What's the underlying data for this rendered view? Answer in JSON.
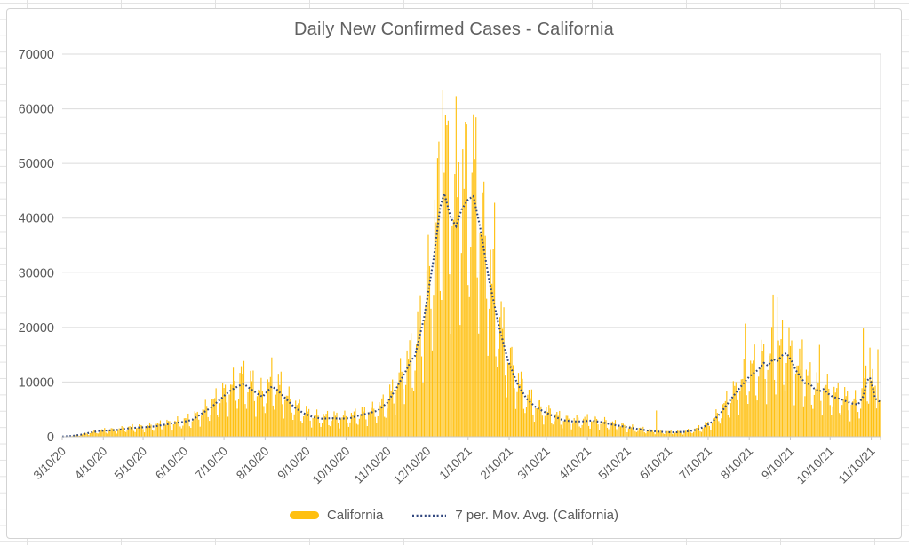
{
  "chart": {
    "title": "Daily New Confirmed Cases - California",
    "legend": [
      {
        "label": "California",
        "type": "bar-swatch",
        "color": "#FFC010"
      },
      {
        "label": "7 per. Mov. Avg. (California)",
        "type": "dotted-line-swatch",
        "color": "#31477E"
      }
    ]
  },
  "chart_data": {
    "type": "bar",
    "title": "Daily New Confirmed Cases - California",
    "ylim": [
      0,
      70000
    ],
    "y_ticks": [
      0,
      10000,
      20000,
      30000,
      40000,
      50000,
      60000,
      70000
    ],
    "grid": "horizontal",
    "legend_position": "bottom",
    "x_unit": "day",
    "x_start_date": "3/10/20",
    "total_days": 618,
    "x_axis_end_day": 617,
    "x_ticks": [
      {
        "label": "3/10/20",
        "day": 0
      },
      {
        "label": "4/10/20",
        "day": 31
      },
      {
        "label": "5/10/20",
        "day": 61
      },
      {
        "label": "6/10/20",
        "day": 92
      },
      {
        "label": "7/10/20",
        "day": 122
      },
      {
        "label": "8/10/20",
        "day": 153
      },
      {
        "label": "9/10/20",
        "day": 184
      },
      {
        "label": "10/10/20",
        "day": 214
      },
      {
        "label": "11/10/20",
        "day": 245
      },
      {
        "label": "12/10/20",
        "day": 275
      },
      {
        "label": "1/10/21",
        "day": 306
      },
      {
        "label": "2/10/21",
        "day": 337
      },
      {
        "label": "3/10/21",
        "day": 365
      },
      {
        "label": "4/10/21",
        "day": 396
      },
      {
        "label": "5/10/21",
        "day": 426
      },
      {
        "label": "6/10/21",
        "day": 457
      },
      {
        "label": "7/10/21",
        "day": 487
      },
      {
        "label": "8/10/21",
        "day": 518
      },
      {
        "label": "9/10/21",
        "day": 549
      },
      {
        "label": "10/10/21",
        "day": 579
      },
      {
        "label": "11/10/21",
        "day": 610
      }
    ],
    "series": [
      {
        "name": "California",
        "type": "bar",
        "color": "#FFC113",
        "model": "daily bars = interpolated moving-average anchors × weekday_factors × (1 + bar_jitter·sin(2.399·day)); spike days override"
      },
      {
        "name": "7 per. Mov. Avg. (California)",
        "type": "dotted-line",
        "color": "#31477E",
        "anchors": [
          [
            0,
            30
          ],
          [
            7,
            130
          ],
          [
            14,
            380
          ],
          [
            21,
            750
          ],
          [
            28,
            1050
          ],
          [
            35,
            1150
          ],
          [
            42,
            1250
          ],
          [
            49,
            1500
          ],
          [
            56,
            1650
          ],
          [
            63,
            1750
          ],
          [
            70,
            1900
          ],
          [
            77,
            2200
          ],
          [
            84,
            2500
          ],
          [
            91,
            2700
          ],
          [
            98,
            3100
          ],
          [
            105,
            4200
          ],
          [
            112,
            5300
          ],
          [
            119,
            6800
          ],
          [
            126,
            8300
          ],
          [
            133,
            9300
          ],
          [
            137,
            9650
          ],
          [
            140,
            9100
          ],
          [
            147,
            7900
          ],
          [
            151,
            7300
          ],
          [
            158,
            9200
          ],
          [
            162,
            8600
          ],
          [
            168,
            7100
          ],
          [
            175,
            5400
          ],
          [
            182,
            4300
          ],
          [
            189,
            3600
          ],
          [
            196,
            3300
          ],
          [
            203,
            3400
          ],
          [
            210,
            3300
          ],
          [
            217,
            3400
          ],
          [
            224,
            3900
          ],
          [
            231,
            4300
          ],
          [
            238,
            4800
          ],
          [
            245,
            6200
          ],
          [
            252,
            8900
          ],
          [
            259,
            12000
          ],
          [
            263,
            13900
          ],
          [
            266,
            14800
          ],
          [
            273,
            22000
          ],
          [
            280,
            32500
          ],
          [
            285,
            42000
          ],
          [
            288,
            44500
          ],
          [
            293,
            40000
          ],
          [
            297,
            38500
          ],
          [
            301,
            41500
          ],
          [
            306,
            43400
          ],
          [
            310,
            44000
          ],
          [
            315,
            38500
          ],
          [
            322,
            28500
          ],
          [
            329,
            20500
          ],
          [
            336,
            14000
          ],
          [
            343,
            9800
          ],
          [
            350,
            7000
          ],
          [
            357,
            5400
          ],
          [
            364,
            4500
          ],
          [
            371,
            3700
          ],
          [
            378,
            3000
          ],
          [
            385,
            2800
          ],
          [
            392,
            2800
          ],
          [
            399,
            2950
          ],
          [
            406,
            2700
          ],
          [
            413,
            2300
          ],
          [
            420,
            2000
          ],
          [
            427,
            1700
          ],
          [
            434,
            1400
          ],
          [
            441,
            1150
          ],
          [
            448,
            950
          ],
          [
            455,
            850
          ],
          [
            462,
            800
          ],
          [
            469,
            900
          ],
          [
            476,
            1150
          ],
          [
            483,
            1700
          ],
          [
            490,
            2700
          ],
          [
            497,
            4500
          ],
          [
            504,
            6800
          ],
          [
            511,
            9000
          ],
          [
            518,
            11000
          ],
          [
            525,
            12300
          ],
          [
            529,
            13500
          ],
          [
            532,
            13000
          ],
          [
            536,
            14200
          ],
          [
            539,
            13800
          ],
          [
            543,
            14900
          ],
          [
            546,
            15300
          ],
          [
            550,
            13800
          ],
          [
            553,
            12200
          ],
          [
            560,
            9800
          ],
          [
            564,
            9600
          ],
          [
            567,
            8800
          ],
          [
            571,
            8300
          ],
          [
            574,
            8700
          ],
          [
            578,
            7800
          ],
          [
            581,
            7300
          ],
          [
            588,
            6800
          ],
          [
            595,
            6100
          ],
          [
            600,
            5900
          ],
          [
            604,
            7400
          ],
          [
            607,
            10300
          ],
          [
            609,
            10800
          ],
          [
            611,
            9000
          ],
          [
            613,
            7000
          ],
          [
            617,
            6300
          ]
        ]
      }
    ],
    "start_weekday": 2,
    "weekday_factors": [
      0.72,
      0.52,
      0.86,
      1.12,
      1.22,
      1.28,
      1.28
    ],
    "bar_jitter": 0.13,
    "spikes": {
      "135": 12900,
      "144": 12100,
      "158": 14500,
      "165": 11900,
      "287": 63500,
      "290": 57000,
      "297": 62300,
      "299": 50300,
      "311": 50800,
      "326": 42800,
      "448": 4800,
      "515": 20700,
      "536": 26000,
      "539": 25500,
      "558": 17800,
      "571": 16800,
      "604": 19800,
      "609": 16300,
      "615": 16000
    }
  }
}
